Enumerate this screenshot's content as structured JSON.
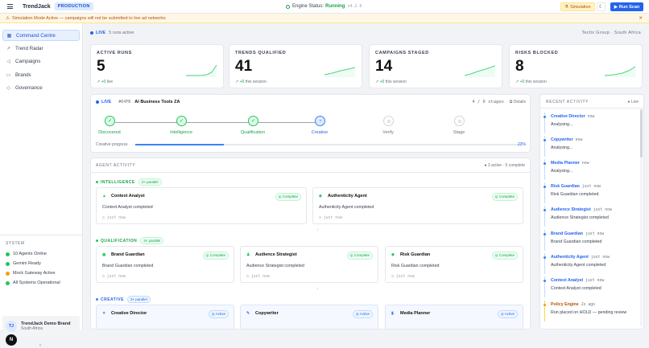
{
  "topbar": {
    "brand": "TrendJack",
    "env": "PRODUCTION",
    "engine_label": "Engine Status:",
    "engine_status": "Running",
    "engine_version": "v4.2.0",
    "simulation_label": "Simulation",
    "run_label": "Run Scan"
  },
  "banner": {
    "text": "Simulation Mode Active — campaigns will not be submitted to live ad networks"
  },
  "sidebar": {
    "items": [
      {
        "label": "Command Centre",
        "icon": "grid-icon"
      },
      {
        "label": "Trend Radar",
        "icon": "trend-icon"
      },
      {
        "label": "Campaigns",
        "icon": "megaphone-icon"
      },
      {
        "label": "Brands",
        "icon": "tag-icon"
      },
      {
        "label": "Governance",
        "icon": "shield-icon"
      }
    ],
    "system_heading": "SYSTEM",
    "system": [
      "10 Agents Online",
      "Gemini Ready",
      "Mock Gateway Active",
      "All Systems Operational"
    ],
    "brand_initials": "TJ",
    "brand_name": "TrendJack Demo Brand",
    "brand_region": "South Africa",
    "user_initial": "N",
    "collapse": "‹"
  },
  "main": {
    "live_label": "LIVE",
    "runs_active": "5 runs active",
    "org": "Tectix Group · South Africa"
  },
  "stats": [
    {
      "label": "ACTIVE RUNS",
      "value": "5",
      "delta": "+0",
      "suffix": "live"
    },
    {
      "label": "TRENDS QUALIFIED",
      "value": "41",
      "delta": "+0",
      "suffix": "this session"
    },
    {
      "label": "CAMPAIGNS STAGED",
      "value": "14",
      "delta": "+0",
      "suffix": "this session"
    },
    {
      "label": "RISKS BLOCKED",
      "value": "8",
      "delta": "+0",
      "suffix": "this session"
    }
  ],
  "pipeline": {
    "live_label": "LIVE",
    "run_id": "#64FB",
    "run_name": "AI Business Tools ZA",
    "stage_count": "4 / 6 stages",
    "details_label": "Details",
    "stages": [
      {
        "label": "Discovered",
        "state": "done"
      },
      {
        "label": "Intelligence",
        "state": "done"
      },
      {
        "label": "Qualification",
        "state": "done"
      },
      {
        "label": "Creative",
        "state": "current"
      },
      {
        "label": "Verify",
        "state": "pending"
      },
      {
        "label": "Stage",
        "state": "pending"
      }
    ],
    "progress_label": "Creative progress",
    "progress": 0.23,
    "progress_text": "23%"
  },
  "agent_activity": {
    "heading": "AGENT ACTIVITY",
    "status": "3 active · 5 complete",
    "sections": [
      {
        "name": "INTELLIGENCE",
        "parallel": "2× parallel",
        "agents": [
          {
            "name": "Context Analyst",
            "status": "Complete",
            "summary": "Context Analyst completed",
            "when": "just now"
          },
          {
            "name": "Authenticity Agent",
            "status": "Complete",
            "summary": "Authenticity Agent completed",
            "when": "just now"
          }
        ]
      },
      {
        "name": "QUALIFICATION",
        "parallel": "3× parallel",
        "agents": [
          {
            "name": "Brand Guardian",
            "status": "Complete",
            "summary": "Brand Guardian completed",
            "when": "just now"
          },
          {
            "name": "Audience Strategist",
            "status": "Complete",
            "summary": "Audience Strategist completed",
            "when": "just now"
          },
          {
            "name": "Risk Guardian",
            "status": "Complete",
            "summary": "Risk Guardian completed",
            "when": "just now"
          }
        ]
      },
      {
        "name": "CREATIVE",
        "parallel": "3× parallel",
        "agents": [
          {
            "name": "Creative Director",
            "status": "Active"
          },
          {
            "name": "Copywriter",
            "status": "Active"
          },
          {
            "name": "Media Planner",
            "status": "Active"
          }
        ]
      }
    ]
  },
  "recent": {
    "heading": "RECENT ACTIVITY",
    "live_label": "Live",
    "items": [
      {
        "agent": "Creative Director",
        "time": "now",
        "text": "Analysing..."
      },
      {
        "agent": "Copywriter",
        "time": "now",
        "text": "Analysing..."
      },
      {
        "agent": "Media Planner",
        "time": "now",
        "text": "Analysing..."
      },
      {
        "agent": "Risk Guardian",
        "time": "just now",
        "text": "Risk Guardian completed"
      },
      {
        "agent": "Audience Strategist",
        "time": "just now",
        "text": "Audience Strategist completed"
      },
      {
        "agent": "Brand Guardian",
        "time": "just now",
        "text": "Brand Guardian completed"
      },
      {
        "agent": "Authenticity Agent",
        "time": "just now",
        "text": "Authenticity Agent completed"
      },
      {
        "agent": "Context Analyst",
        "time": "just now",
        "text": "Context Analyst completed"
      },
      {
        "agent": "Policy Engine",
        "time": "2s ago",
        "text": "Run placed on HOLD — pending review"
      }
    ]
  }
}
